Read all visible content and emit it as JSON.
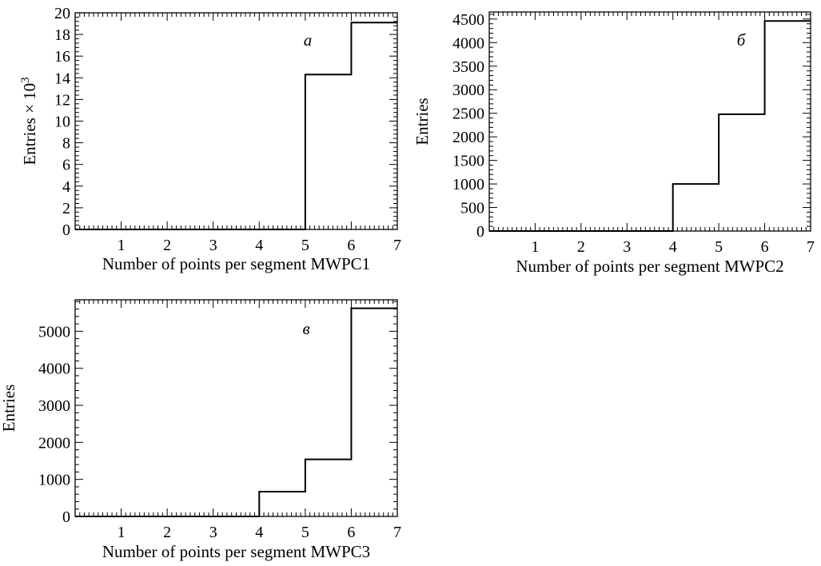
{
  "chart_data": [
    {
      "type": "histogram",
      "panel_label": "a",
      "xlabel": "Number of points per segment MWPC1",
      "ylabel": "Entries × 10",
      "ylabel_exponent": "3",
      "xlim": [
        0,
        7
      ],
      "ylim": [
        0,
        20
      ],
      "x_ticks": [
        "1",
        "2",
        "3",
        "4",
        "5",
        "6",
        "7"
      ],
      "y_ticks": [
        "0",
        "2",
        "4",
        "6",
        "8",
        "10",
        "12",
        "14",
        "16",
        "18",
        "20"
      ],
      "bins": [
        {
          "x0": 0,
          "x1": 1,
          "value": 0
        },
        {
          "x0": 1,
          "x1": 2,
          "value": 0
        },
        {
          "x0": 2,
          "x1": 3,
          "value": 0
        },
        {
          "x0": 3,
          "x1": 4,
          "value": 0
        },
        {
          "x0": 4,
          "x1": 5,
          "value": 0
        },
        {
          "x0": 5,
          "x1": 6,
          "value": 14.3
        },
        {
          "x0": 6,
          "x1": 7,
          "value": 19.1
        }
      ]
    },
    {
      "type": "histogram",
      "panel_label": "б",
      "xlabel": "Number of points per segment MWPC2",
      "ylabel": "Entries",
      "xlim": [
        0,
        7
      ],
      "ylim": [
        0,
        4650
      ],
      "x_ticks": [
        "1",
        "2",
        "3",
        "4",
        "5",
        "6",
        "7"
      ],
      "y_ticks": [
        "0",
        "500",
        "1000",
        "1500",
        "2000",
        "2500",
        "3000",
        "3500",
        "4000",
        "4500"
      ],
      "bins": [
        {
          "x0": 0,
          "x1": 1,
          "value": 0
        },
        {
          "x0": 1,
          "x1": 2,
          "value": 0
        },
        {
          "x0": 2,
          "x1": 3,
          "value": 0
        },
        {
          "x0": 3,
          "x1": 4,
          "value": 0
        },
        {
          "x0": 4,
          "x1": 5,
          "value": 1000
        },
        {
          "x0": 5,
          "x1": 6,
          "value": 2480
        },
        {
          "x0": 6,
          "x1": 7,
          "value": 4460
        }
      ]
    },
    {
      "type": "histogram",
      "panel_label": "в",
      "xlabel": "Number of points per segment MWPC3",
      "ylabel": "Entries",
      "xlim": [
        0,
        7
      ],
      "ylim": [
        0,
        5850
      ],
      "x_ticks": [
        "1",
        "2",
        "3",
        "4",
        "5",
        "6",
        "7"
      ],
      "y_ticks": [
        "0",
        "1000",
        "2000",
        "3000",
        "4000",
        "5000"
      ],
      "bins": [
        {
          "x0": 0,
          "x1": 1,
          "value": 0
        },
        {
          "x0": 1,
          "x1": 2,
          "value": 0
        },
        {
          "x0": 2,
          "x1": 3,
          "value": 0
        },
        {
          "x0": 3,
          "x1": 4,
          "value": 0
        },
        {
          "x0": 4,
          "x1": 5,
          "value": 670
        },
        {
          "x0": 5,
          "x1": 6,
          "value": 1540
        },
        {
          "x0": 6,
          "x1": 7,
          "value": 5620
        }
      ]
    }
  ]
}
